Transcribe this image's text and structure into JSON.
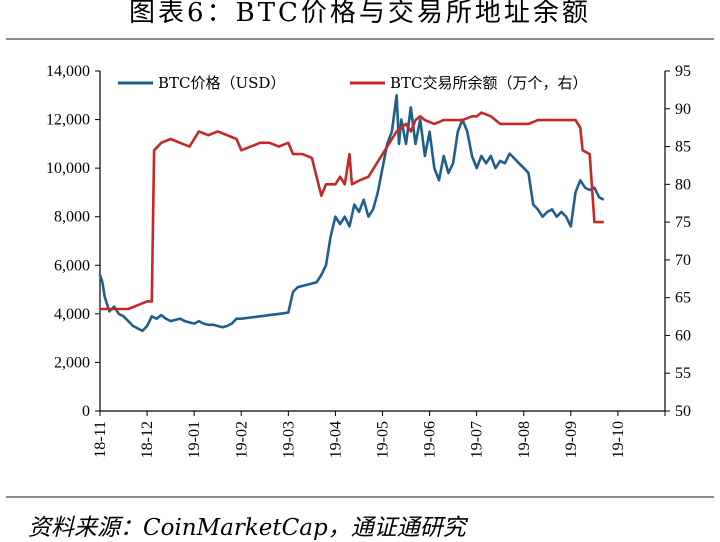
{
  "title": "图表6：BTC价格与交易所地址余额",
  "source": "资料来源：CoinMarketCap，通证通研究",
  "chart_data": {
    "type": "line",
    "x_labels": [
      "18-11",
      "18-12",
      "19-01",
      "19-02",
      "19-03",
      "19-04",
      "19-05",
      "19-06",
      "19-07",
      "19-08",
      "19-09",
      "19-10"
    ],
    "y_left": {
      "min": 0,
      "max": 14000,
      "ticks": [
        "0",
        "2,000",
        "4,000",
        "6,000",
        "8,000",
        "10,000",
        "12,000",
        "14,000"
      ]
    },
    "y_right": {
      "min": 50,
      "max": 95,
      "ticks": [
        "50",
        "55",
        "60",
        "65",
        "70",
        "75",
        "80",
        "85",
        "90",
        "95"
      ]
    },
    "legend_position": "top",
    "series": [
      {
        "name": "BTC价格（USD）",
        "axis": "left",
        "color": "#1f5f8b",
        "points": [
          [
            0.0,
            5600
          ],
          [
            0.05,
            5300
          ],
          [
            0.1,
            4700
          ],
          [
            0.2,
            4100
          ],
          [
            0.3,
            4300
          ],
          [
            0.4,
            4000
          ],
          [
            0.5,
            3900
          ],
          [
            0.6,
            3700
          ],
          [
            0.7,
            3500
          ],
          [
            0.8,
            3400
          ],
          [
            0.9,
            3300
          ],
          [
            1.0,
            3500
          ],
          [
            1.1,
            3900
          ],
          [
            1.2,
            3800
          ],
          [
            1.3,
            3950
          ],
          [
            1.4,
            3800
          ],
          [
            1.5,
            3700
          ],
          [
            1.6,
            3750
          ],
          [
            1.7,
            3800
          ],
          [
            1.8,
            3700
          ],
          [
            1.9,
            3650
          ],
          [
            2.0,
            3600
          ],
          [
            2.1,
            3700
          ],
          [
            2.2,
            3600
          ],
          [
            2.3,
            3550
          ],
          [
            2.4,
            3550
          ],
          [
            2.5,
            3500
          ],
          [
            2.6,
            3450
          ],
          [
            2.7,
            3500
          ],
          [
            2.8,
            3600
          ],
          [
            2.9,
            3800
          ],
          [
            3.0,
            3800
          ],
          [
            3.2,
            3850
          ],
          [
            3.4,
            3900
          ],
          [
            3.6,
            3950
          ],
          [
            3.8,
            4000
          ],
          [
            4.0,
            4050
          ],
          [
            4.1,
            4900
          ],
          [
            4.2,
            5100
          ],
          [
            4.4,
            5200
          ],
          [
            4.6,
            5300
          ],
          [
            4.7,
            5600
          ],
          [
            4.8,
            6000
          ],
          [
            4.9,
            7200
          ],
          [
            5.0,
            8000
          ],
          [
            5.1,
            7700
          ],
          [
            5.2,
            8000
          ],
          [
            5.3,
            7600
          ],
          [
            5.4,
            8500
          ],
          [
            5.5,
            8200
          ],
          [
            5.6,
            8700
          ],
          [
            5.7,
            8000
          ],
          [
            5.8,
            8300
          ],
          [
            5.9,
            9000
          ],
          [
            6.0,
            10000
          ],
          [
            6.1,
            11000
          ],
          [
            6.2,
            11500
          ],
          [
            6.3,
            13000
          ],
          [
            6.35,
            11000
          ],
          [
            6.4,
            12000
          ],
          [
            6.5,
            11000
          ],
          [
            6.6,
            12500
          ],
          [
            6.7,
            11000
          ],
          [
            6.8,
            12000
          ],
          [
            6.9,
            10500
          ],
          [
            7.0,
            11500
          ],
          [
            7.1,
            10000
          ],
          [
            7.2,
            9500
          ],
          [
            7.3,
            10500
          ],
          [
            7.4,
            9800
          ],
          [
            7.5,
            10200
          ],
          [
            7.6,
            11500
          ],
          [
            7.7,
            12000
          ],
          [
            7.8,
            11500
          ],
          [
            7.9,
            10500
          ],
          [
            8.0,
            10000
          ],
          [
            8.1,
            10500
          ],
          [
            8.2,
            10200
          ],
          [
            8.3,
            10500
          ],
          [
            8.4,
            10000
          ],
          [
            8.5,
            10300
          ],
          [
            8.6,
            10200
          ],
          [
            8.7,
            10600
          ],
          [
            8.8,
            10400
          ],
          [
            8.9,
            10200
          ],
          [
            9.0,
            10000
          ],
          [
            9.1,
            9800
          ],
          [
            9.2,
            8500
          ],
          [
            9.3,
            8300
          ],
          [
            9.4,
            8000
          ],
          [
            9.5,
            8200
          ],
          [
            9.6,
            8300
          ],
          [
            9.7,
            8000
          ],
          [
            9.8,
            8200
          ],
          [
            9.9,
            8000
          ],
          [
            10.0,
            7600
          ],
          [
            10.1,
            9000
          ],
          [
            10.2,
            9500
          ],
          [
            10.3,
            9200
          ],
          [
            10.4,
            9100
          ],
          [
            10.5,
            9200
          ],
          [
            10.6,
            8800
          ],
          [
            10.7,
            8700
          ]
        ]
      },
      {
        "name": "BTC交易所余额（万个，右）",
        "axis": "right",
        "color": "#c62828",
        "points": [
          [
            0.0,
            63.5
          ],
          [
            0.3,
            63.5
          ],
          [
            0.6,
            63.5
          ],
          [
            0.8,
            64
          ],
          [
            1.0,
            64.5
          ],
          [
            1.1,
            64.5
          ],
          [
            1.15,
            84.5
          ],
          [
            1.3,
            85.5
          ],
          [
            1.5,
            86
          ],
          [
            1.7,
            85.5
          ],
          [
            1.9,
            85
          ],
          [
            2.0,
            86
          ],
          [
            2.1,
            87
          ],
          [
            2.3,
            86.5
          ],
          [
            2.5,
            87
          ],
          [
            2.7,
            86.5
          ],
          [
            2.9,
            86
          ],
          [
            3.0,
            84.5
          ],
          [
            3.2,
            85
          ],
          [
            3.4,
            85.5
          ],
          [
            3.6,
            85.5
          ],
          [
            3.8,
            85
          ],
          [
            4.0,
            85.5
          ],
          [
            4.1,
            84
          ],
          [
            4.3,
            84
          ],
          [
            4.5,
            83.5
          ],
          [
            4.6,
            81
          ],
          [
            4.7,
            78.5
          ],
          [
            4.8,
            80
          ],
          [
            4.9,
            80
          ],
          [
            5.0,
            80
          ],
          [
            5.1,
            81
          ],
          [
            5.2,
            80
          ],
          [
            5.3,
            84
          ],
          [
            5.35,
            80
          ],
          [
            5.5,
            80.5
          ],
          [
            5.7,
            81
          ],
          [
            5.9,
            83
          ],
          [
            6.1,
            85
          ],
          [
            6.3,
            87
          ],
          [
            6.4,
            87.5
          ],
          [
            6.5,
            88
          ],
          [
            6.6,
            87
          ],
          [
            6.7,
            88.5
          ],
          [
            6.8,
            89
          ],
          [
            6.9,
            88.5
          ],
          [
            7.1,
            88
          ],
          [
            7.3,
            88.5
          ],
          [
            7.5,
            88.5
          ],
          [
            7.7,
            88.5
          ],
          [
            7.9,
            89
          ],
          [
            8.0,
            89
          ],
          [
            8.1,
            89.5
          ],
          [
            8.3,
            89
          ],
          [
            8.5,
            88
          ],
          [
            8.7,
            88
          ],
          [
            8.9,
            88
          ],
          [
            9.1,
            88
          ],
          [
            9.3,
            88.5
          ],
          [
            9.5,
            88.5
          ],
          [
            9.7,
            88.5
          ],
          [
            9.9,
            88.5
          ],
          [
            10.1,
            88.5
          ],
          [
            10.2,
            87.5
          ],
          [
            10.25,
            84.5
          ],
          [
            10.4,
            84
          ],
          [
            10.5,
            75
          ],
          [
            10.6,
            75
          ],
          [
            10.7,
            75
          ]
        ]
      }
    ]
  }
}
